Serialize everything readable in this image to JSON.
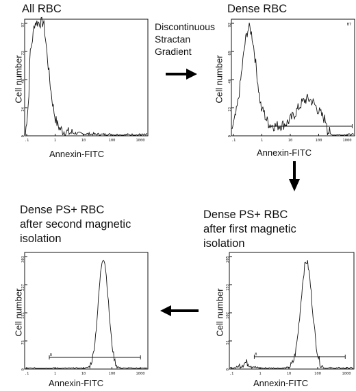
{
  "panels": [
    {
      "id": "all",
      "title_lines": [
        "All RBC"
      ],
      "ylabel": "Cell number",
      "xlabel": "Annexin-FITC",
      "yticks": [
        "0",
        "24",
        "48",
        "73",
        "97"
      ],
      "xticks": [
        ".1",
        "1",
        "10",
        "100",
        "1000"
      ],
      "gate": false
    },
    {
      "id": "dense",
      "title_lines": [
        "Dense RBC"
      ],
      "ylabel": "Cell number",
      "xlabel": "Annexin-FITC",
      "yticks": [
        "0",
        "23",
        "46",
        "69",
        "92"
      ],
      "xticks": [
        ".1",
        "1",
        "10",
        "100",
        "1000"
      ],
      "gate": true
    },
    {
      "id": "first",
      "title_lines": [
        "Dense PS+ RBC",
        "after first magnetic",
        "isolation"
      ],
      "ylabel": "Cell number",
      "xlabel": "Annexin-FITC",
      "yticks": [
        "0",
        "51",
        "102",
        "153",
        "205"
      ],
      "xticks": [
        ".1",
        "1",
        "10",
        "100",
        "1000"
      ],
      "gate": true
    },
    {
      "id": "second",
      "title_lines": [
        "Dense PS+ RBC",
        "after second magnetic",
        "isolation"
      ],
      "ylabel": "Cell number",
      "xlabel": "Annexin-FITC",
      "yticks": [
        "0",
        "75",
        "151",
        "227",
        "303"
      ],
      "xticks": [
        ".1",
        "1",
        "10",
        "100",
        "1000"
      ],
      "gate": true
    }
  ],
  "step_label_lines": [
    "Discontinuous",
    "Stractan",
    "Gradient"
  ],
  "gate_label": "B",
  "corner_mark": "B7",
  "colors": {
    "line": "#111111",
    "arrow": "#000000"
  }
}
